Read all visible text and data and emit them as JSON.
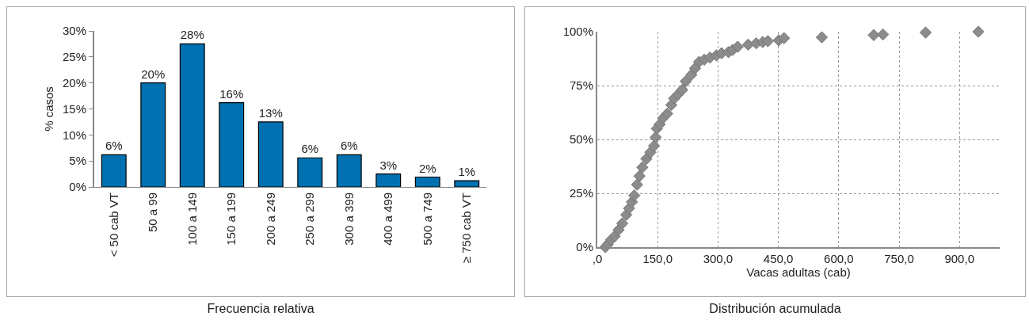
{
  "chart_data": [
    {
      "type": "bar",
      "title": "Frecuencia relativa",
      "ylabel": "% casos",
      "categories": [
        "< 50 cab VT",
        "50 a 99",
        "100 a 149",
        "150 a 199",
        "200 a 249",
        "250 a 299",
        "300 a 399",
        "400 a 499",
        "500 a 749",
        "≥ 750 cab VT"
      ],
      "values": [
        6.2,
        20,
        27.5,
        16.2,
        12.5,
        5.6,
        6.2,
        2.5,
        1.9,
        1.2
      ],
      "value_labels": [
        "6%",
        "20%",
        "28%",
        "16%",
        "13%",
        "6%",
        "6%",
        "3%",
        "2%",
        "1%"
      ],
      "color": "#0070b0",
      "ylim": [
        0,
        30
      ],
      "yticks": [
        {
          "value": 0,
          "label": "0%"
        },
        {
          "value": 5,
          "label": "5%"
        },
        {
          "value": 10,
          "label": "10%"
        },
        {
          "value": 15,
          "label": "15%"
        },
        {
          "value": 20,
          "label": "20%"
        },
        {
          "value": 25,
          "label": "25%"
        },
        {
          "value": 30,
          "label": "30%"
        }
      ],
      "grid": false
    },
    {
      "type": "scatter",
      "title": "Distribución acumulada",
      "xlabel": "Vacas adultas (cab)",
      "x": [
        20,
        26,
        34,
        43,
        53,
        62,
        72,
        79,
        86,
        92,
        99,
        105,
        112,
        122,
        132,
        141,
        145,
        148,
        155,
        164,
        174,
        184,
        191,
        201,
        211,
        220,
        234,
        243,
        253,
        266,
        280,
        296,
        309,
        326,
        336,
        349,
        375,
        395,
        411,
        424,
        451,
        464,
        558,
        687,
        710,
        816,
        947
      ],
      "values": [
        0,
        1.3,
        3.4,
        5,
        8,
        11,
        15,
        18,
        21,
        24,
        29,
        33,
        37,
        41,
        44,
        47,
        51,
        55,
        57,
        60,
        62,
        66,
        69,
        71,
        73,
        77,
        80,
        83,
        86,
        87,
        88,
        89,
        90,
        90.5,
        91.5,
        93,
        94,
        94.6,
        95.2,
        95.6,
        96,
        97,
        97.4,
        98.4,
        98.7,
        99.6,
        100
      ],
      "color": "#8c8c8c",
      "marker": "diamond",
      "xlim": [
        0,
        1000
      ],
      "xticks": [
        {
          "value": 0,
          "label": ",0"
        },
        {
          "value": 150,
          "label": "150,0"
        },
        {
          "value": 300,
          "label": "300,0"
        },
        {
          "value": 450,
          "label": "450,0"
        },
        {
          "value": 600,
          "label": "600,0"
        },
        {
          "value": 750,
          "label": "750,0"
        },
        {
          "value": 900,
          "label": "900,0"
        }
      ],
      "ylim": [
        0,
        100
      ],
      "yticks": [
        {
          "value": 0,
          "label": "0%"
        },
        {
          "value": 25,
          "label": "25%"
        },
        {
          "value": 50,
          "label": "50%"
        },
        {
          "value": 75,
          "label": "75%"
        },
        {
          "value": 100,
          "label": "100%"
        }
      ],
      "grid": true
    }
  ]
}
